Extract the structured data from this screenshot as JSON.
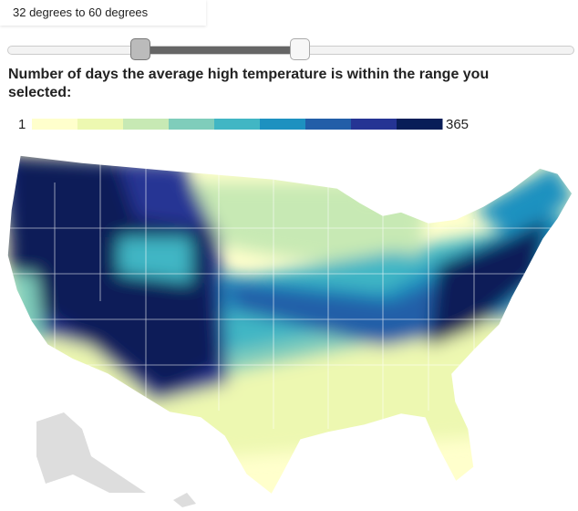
{
  "range_label": "32 degrees to 60 degrees",
  "heading": "Number of days the average high temperature is within the range you selected:",
  "legend": {
    "min": 1,
    "max": 365,
    "colors": [
      "#ffffcc",
      "#edf8b1",
      "#c7e9b4",
      "#7fcdbb",
      "#41b6c4",
      "#1d91c0",
      "#225ea8",
      "#253494",
      "#081d58"
    ]
  }
}
